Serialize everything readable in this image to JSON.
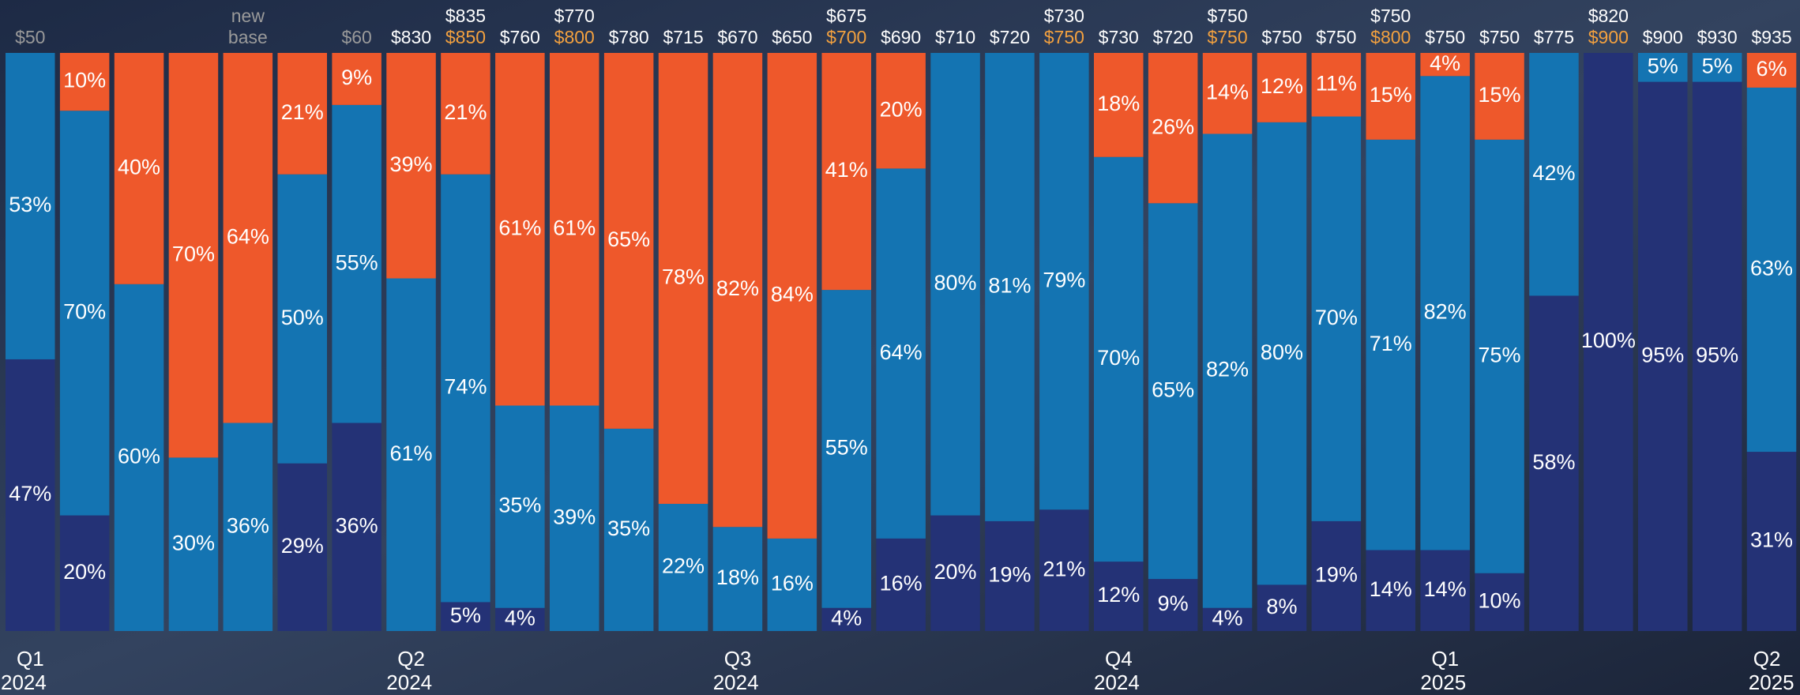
{
  "chart_data": {
    "type": "stacked_bar",
    "ylim": [
      0,
      100
    ],
    "series": [
      {
        "name": "navy",
        "color": "#243276",
        "values": [
          47,
          20,
          null,
          null,
          null,
          29,
          36,
          null,
          5,
          4,
          null,
          null,
          null,
          null,
          null,
          4,
          16,
          20,
          19,
          21,
          12,
          9,
          4,
          8,
          19,
          14,
          14,
          10,
          58,
          100,
          95,
          95,
          31
        ],
        "value_labels": [
          "47%",
          "20%",
          null,
          null,
          null,
          "29%",
          "36%",
          null,
          "5%",
          "4%",
          null,
          null,
          null,
          null,
          null,
          "4%",
          "16%",
          "20%",
          "19%",
          "21%",
          "12%",
          "9%",
          "4%",
          "8%",
          "19%",
          "14%",
          "14%",
          "10%",
          "58%",
          "100%",
          "95%",
          "95%",
          "31%"
        ]
      },
      {
        "name": "blue",
        "color": "#1474b2",
        "values": [
          53,
          70,
          60,
          30,
          36,
          50,
          55,
          61,
          74,
          35,
          39,
          35,
          22,
          18,
          16,
          55,
          64,
          80,
          81,
          79,
          70,
          65,
          82,
          80,
          70,
          71,
          82,
          75,
          42,
          null,
          5,
          5,
          63
        ],
        "value_labels": [
          "53%",
          "70%",
          "60%",
          "30%",
          "36%",
          "50%",
          "55%",
          "61%",
          "74%",
          "35%",
          "39%",
          "35%",
          "22%",
          "18%",
          "16%",
          "55%",
          "64%",
          "80%",
          "81%",
          "79%",
          "70%",
          "65%",
          "82%",
          "80%",
          "70%",
          "71%",
          "82%",
          "75%",
          "42%",
          null,
          "5%",
          "5%",
          "63%"
        ]
      },
      {
        "name": "orange",
        "color": "#ee582b",
        "values": [
          null,
          10,
          40,
          70,
          64,
          21,
          9,
          39,
          21,
          61,
          61,
          65,
          78,
          82,
          84,
          41,
          20,
          null,
          null,
          null,
          18,
          26,
          14,
          12,
          11,
          15,
          4,
          15,
          null,
          null,
          null,
          null,
          6
        ],
        "value_labels": [
          null,
          "10%",
          "40%",
          "70%",
          "64%",
          "21%",
          "9%",
          "39%",
          "21%",
          "61%",
          "61%",
          "65%",
          "78%",
          "82%",
          "84%",
          "41%",
          "20%",
          null,
          null,
          null,
          "18%",
          "26%",
          "14%",
          "12%",
          "11%",
          "15%",
          "4%",
          "15%",
          null,
          null,
          null,
          null,
          "6%"
        ]
      }
    ],
    "upper_labels": [
      null,
      null,
      null,
      null,
      "new",
      null,
      null,
      null,
      "$835",
      null,
      "$770",
      null,
      null,
      null,
      null,
      "$675",
      null,
      null,
      null,
      "$730",
      null,
      null,
      "$750",
      null,
      null,
      "$750",
      null,
      null,
      null,
      "$820",
      null,
      null,
      null
    ],
    "upper_colors": [
      null,
      null,
      null,
      null,
      "#9a9a9a",
      null,
      null,
      null,
      "#ffffff",
      null,
      "#ffffff",
      null,
      null,
      null,
      null,
      "#ffffff",
      null,
      null,
      null,
      "#ffffff",
      null,
      null,
      "#ffffff",
      null,
      null,
      "#ffffff",
      null,
      null,
      null,
      "#ffffff",
      null,
      null,
      null
    ],
    "lower_labels": [
      "$50",
      null,
      null,
      null,
      "base",
      null,
      "$60",
      "$830",
      "$850",
      "$760",
      "$800",
      "$780",
      "$715",
      "$670",
      "$650",
      "$700",
      "$690",
      "$710",
      "$720",
      "$750",
      "$730",
      "$720",
      "$750",
      "$750",
      "$750",
      "$800",
      "$750",
      "$750",
      "$775",
      "$900",
      "$900",
      "$930",
      "$935"
    ],
    "lower_colors": [
      "#9a9a9a",
      null,
      null,
      null,
      "#9a9a9a",
      null,
      "#9a9a9a",
      "#ffffff",
      "#f3a13f",
      "#ffffff",
      "#f3a13f",
      "#ffffff",
      "#ffffff",
      "#ffffff",
      "#ffffff",
      "#f3a13f",
      "#ffffff",
      "#ffffff",
      "#ffffff",
      "#f3a13f",
      "#ffffff",
      "#ffffff",
      "#f3a13f",
      "#ffffff",
      "#ffffff",
      "#f3a13f",
      "#ffffff",
      "#ffffff",
      "#ffffff",
      "#f3a13f",
      "#ffffff",
      "#ffffff",
      "#ffffff"
    ],
    "quarters": [
      "Q1",
      null,
      null,
      null,
      null,
      null,
      null,
      "Q2",
      null,
      null,
      null,
      null,
      null,
      "Q3",
      null,
      null,
      null,
      null,
      null,
      null,
      "Q4",
      null,
      null,
      null,
      null,
      null,
      "Q1",
      null,
      null,
      null,
      null,
      null,
      "Q2"
    ],
    "years": [
      "2024",
      null,
      null,
      null,
      null,
      null,
      null,
      "2024",
      null,
      null,
      null,
      null,
      null,
      "2024",
      null,
      null,
      null,
      null,
      null,
      null,
      "2024",
      null,
      null,
      null,
      null,
      null,
      "2025",
      null,
      null,
      null,
      null,
      null,
      "2025"
    ]
  }
}
